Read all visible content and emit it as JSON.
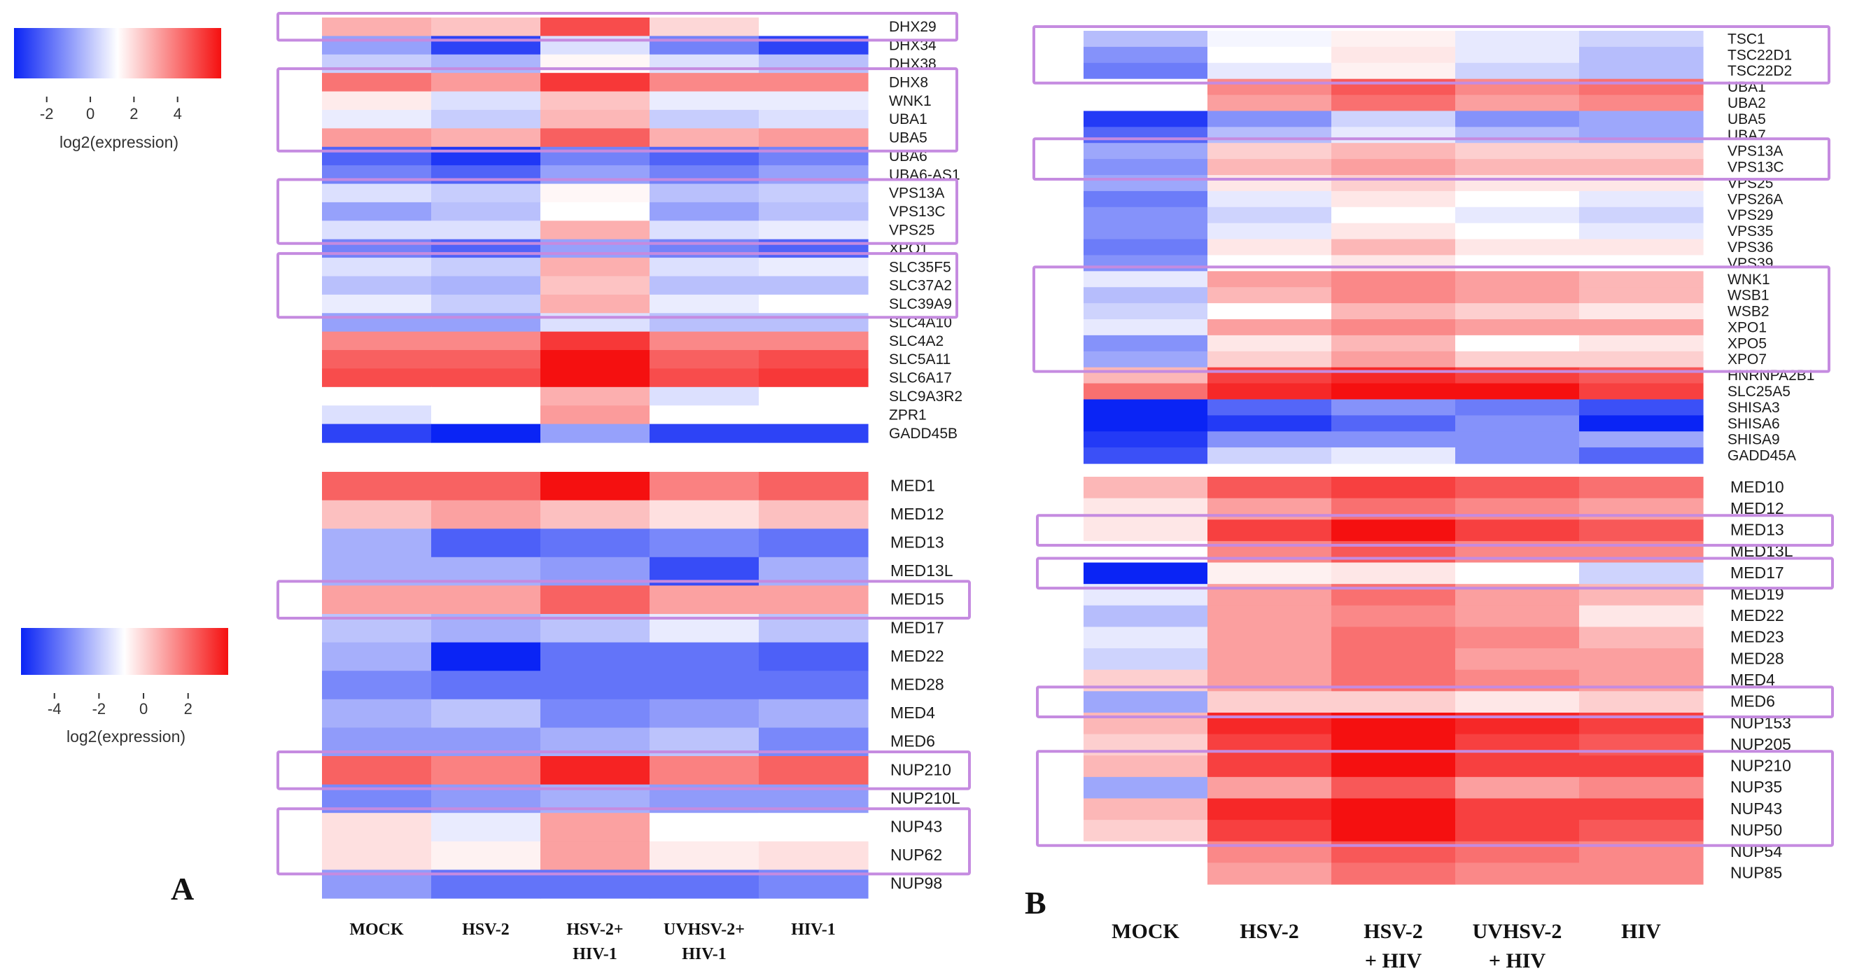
{
  "figure": {
    "panel_a_label": "A",
    "panel_b_label": "B",
    "legend_top": {
      "ticks": [
        "-2",
        "0",
        "2",
        "4"
      ],
      "title": "log2(expression)",
      "range": [
        -3.5,
        6
      ]
    },
    "legend_bottom": {
      "ticks": [
        "-4",
        "-2",
        "0",
        "2"
      ],
      "title": "log2(expression)",
      "range": [
        -5.5,
        3.8
      ]
    }
  },
  "colors": {
    "low": "#0a24f5",
    "mid": "#ffffff",
    "high": "#f51010",
    "highlight": "#c58be0"
  },
  "chart_data": [
    {
      "type": "heatmap",
      "title": "A (top)",
      "columns": [
        "MOCK",
        "HSV-2",
        "HSV-2+ HIV-1",
        "UVHSV-2+ HIV-1",
        "HIV-1"
      ],
      "column_labels": [
        [
          "MOCK"
        ],
        [
          "HSV-2"
        ],
        [
          "HSV-2+",
          "HIV-1"
        ],
        [
          "UVHSV-2+",
          "HIV-1"
        ],
        [
          "HIV-1"
        ]
      ],
      "range": [
        -3.5,
        6
      ],
      "rows": [
        "DHX29",
        "DHX34",
        "DHX38",
        "DHX8",
        "WNK1",
        "UBA1",
        "UBA5",
        "UBA6",
        "UBA6-AS1",
        "VPS13A",
        "VPS13C",
        "VPS25",
        "XPO1",
        "SLC35F5",
        "SLC37A2",
        "SLC39A9",
        "SLC4A10",
        "SLC4A2",
        "SLC5A11",
        "SLC6A17",
        "SLC9A3R2",
        "ZPR1",
        "GADD45B"
      ],
      "values": [
        [
          2.0,
          1.5,
          4.5,
          1.0,
          0.0
        ],
        [
          -1.5,
          -3.0,
          -0.5,
          -2.0,
          -3.0
        ],
        [
          -0.8,
          -1.2,
          0.2,
          -0.5,
          -1.0
        ],
        [
          3.5,
          2.5,
          5.0,
          3.0,
          3.0
        ],
        [
          0.5,
          -0.5,
          1.5,
          -0.3,
          -0.3
        ],
        [
          -0.3,
          -0.8,
          1.8,
          -0.8,
          -0.5
        ],
        [
          2.5,
          2.0,
          4.0,
          2.0,
          2.5
        ],
        [
          -2.5,
          -3.2,
          -2.0,
          -2.5,
          -2.0
        ],
        [
          -2.0,
          -2.5,
          -1.5,
          -2.0,
          -1.5
        ],
        [
          -0.5,
          -0.8,
          0.2,
          -1.0,
          -0.8
        ],
        [
          -1.5,
          -1.0,
          0.0,
          -1.5,
          -1.0
        ],
        [
          -0.5,
          -0.5,
          2.0,
          -0.5,
          -0.3
        ],
        [
          -2.0,
          -2.5,
          -1.5,
          -2.0,
          -2.5
        ],
        [
          -0.5,
          -0.8,
          2.0,
          -0.5,
          -0.3
        ],
        [
          -1.0,
          -1.2,
          1.5,
          -1.0,
          -1.0
        ],
        [
          -0.3,
          -0.8,
          2.0,
          -0.3,
          0.0
        ],
        [
          -1.5,
          -1.5,
          -0.5,
          -1.0,
          -1.0
        ],
        [
          3.0,
          3.0,
          5.0,
          3.0,
          3.0
        ],
        [
          4.0,
          4.0,
          6.0,
          4.0,
          4.5
        ],
        [
          4.5,
          4.5,
          6.5,
          4.5,
          5.0
        ],
        [
          0.0,
          0.0,
          2.0,
          -0.5,
          0.0
        ],
        [
          -0.5,
          0.0,
          2.5,
          0.0,
          0.0
        ],
        [
          -3.0,
          -3.5,
          -1.5,
          -3.0,
          -3.0
        ]
      ],
      "highlights": [
        [
          "DHX29",
          "DHX29"
        ],
        [
          "DHX8",
          "UBA5"
        ],
        [
          "VPS13A",
          "VPS25"
        ],
        [
          "SLC35F5",
          "SLC39A9"
        ]
      ]
    },
    {
      "type": "heatmap",
      "title": "A (bottom)",
      "columns": [
        "MOCK",
        "HSV-2",
        "HSV-2+ HIV-1",
        "UVHSV-2+ HIV-1",
        "HIV-1"
      ],
      "range": [
        -5.5,
        3.8
      ],
      "rows": [
        "MED1",
        "MED12",
        "MED13",
        "MED13L",
        "MED15",
        "MED17",
        "MED22",
        "MED28",
        "MED4",
        "MED6",
        "NUP210",
        "NUP210L",
        "NUP43",
        "NUP62",
        "NUP98"
      ],
      "values": [
        [
          2.5,
          2.5,
          4.0,
          2.0,
          2.5
        ],
        [
          1.0,
          1.5,
          1.0,
          0.5,
          1.0
        ],
        [
          -2.0,
          -4.0,
          -3.5,
          -3.0,
          -3.5
        ],
        [
          -2.0,
          -2.0,
          -2.5,
          -4.5,
          -2.0
        ],
        [
          1.5,
          1.5,
          2.5,
          1.5,
          1.5
        ],
        [
          -1.5,
          -2.0,
          -1.5,
          -0.5,
          -1.5
        ],
        [
          -2.0,
          -5.5,
          -3.5,
          -3.5,
          -4.0
        ],
        [
          -3.0,
          -3.5,
          -3.5,
          -3.5,
          -3.5
        ],
        [
          -2.0,
          -1.5,
          -3.0,
          -2.5,
          -2.0
        ],
        [
          -2.5,
          -2.5,
          -2.0,
          -1.5,
          -3.0
        ],
        [
          2.5,
          2.0,
          3.5,
          2.0,
          2.5
        ],
        [
          -3.0,
          -2.5,
          -2.0,
          -2.5,
          -2.5
        ],
        [
          0.5,
          -0.5,
          1.5,
          0.0,
          0.0
        ],
        [
          0.5,
          0.2,
          1.5,
          0.3,
          0.5
        ],
        [
          -2.5,
          -3.5,
          -3.5,
          -3.5,
          -3.0
        ]
      ],
      "highlights": [
        [
          "MED15",
          "MED15"
        ],
        [
          "NUP210",
          "NUP210"
        ],
        [
          "NUP43",
          "NUP62"
        ]
      ]
    },
    {
      "type": "heatmap",
      "title": "B (top)",
      "columns": [
        "MOCK",
        "HSV-2",
        "HSV-2 + HIV",
        "UVHSV-2 + HIV",
        "HIV"
      ],
      "column_labels": [
        [
          "MOCK"
        ],
        [
          "HSV-2"
        ],
        [
          "HSV-2",
          "+ HIV"
        ],
        [
          "UVHSV-2",
          "+ HIV"
        ],
        [
          "HIV"
        ]
      ],
      "rows": [
        "TSC1",
        "TSC22D1",
        "TSC22D2",
        "UBA1",
        "UBA2",
        "UBA5",
        "UBA7",
        "VPS13A",
        "VPS13C",
        "VPS25",
        "VPS26A",
        "VPS29",
        "VPS35",
        "VPS36",
        "VPS39",
        "WNK1",
        "WSB1",
        "WSB2",
        "XPO1",
        "XPO5",
        "XPO7",
        "HNRNPA2B1",
        "SLC25A5",
        "SHISA3",
        "SHISA6",
        "SHISA9",
        "GADD45A"
      ],
      "values": [
        [
          -1.5,
          -0.2,
          0.3,
          -0.5,
          -1.0
        ],
        [
          -2.5,
          0.0,
          0.5,
          -0.5,
          -1.5
        ],
        [
          -3.0,
          -0.5,
          0.3,
          -1.0,
          -1.5
        ],
        [
          0.0,
          2.5,
          3.5,
          2.5,
          3.0
        ],
        [
          0.0,
          2.0,
          3.0,
          2.0,
          2.5
        ],
        [
          -4.5,
          -2.5,
          -1.0,
          -2.5,
          -2.0
        ],
        [
          -3.5,
          -1.5,
          -0.5,
          -1.5,
          -2.0
        ],
        [
          -2.0,
          1.0,
          1.5,
          1.0,
          1.0
        ],
        [
          -2.5,
          1.5,
          2.0,
          1.5,
          1.5
        ],
        [
          -2.0,
          0.5,
          1.0,
          0.5,
          0.5
        ],
        [
          -3.0,
          -0.5,
          0.5,
          0.0,
          -0.5
        ],
        [
          -2.5,
          -1.0,
          0.0,
          -0.5,
          -1.0
        ],
        [
          -2.5,
          -0.5,
          0.5,
          0.0,
          -0.5
        ],
        [
          -3.0,
          0.5,
          1.5,
          0.5,
          0.5
        ],
        [
          -2.5,
          0.0,
          0.5,
          0.0,
          0.0
        ],
        [
          -0.5,
          2.0,
          2.5,
          2.0,
          1.5
        ],
        [
          -1.5,
          1.5,
          2.5,
          2.0,
          1.5
        ],
        [
          -1.0,
          0.0,
          1.5,
          1.0,
          0.5
        ],
        [
          -0.5,
          2.0,
          2.5,
          2.0,
          2.0
        ],
        [
          -2.5,
          0.5,
          1.5,
          0.0,
          0.5
        ],
        [
          -2.0,
          1.0,
          2.0,
          1.0,
          1.0
        ],
        [
          1.5,
          4.0,
          4.5,
          4.0,
          3.5
        ],
        [
          3.0,
          4.5,
          5.0,
          5.0,
          4.0
        ],
        [
          -5.0,
          -3.5,
          -2.5,
          -3.0,
          -4.0
        ],
        [
          -5.0,
          -4.5,
          -3.5,
          -2.5,
          -5.0
        ],
        [
          -4.5,
          -2.5,
          -2.5,
          -2.5,
          -2.0
        ],
        [
          -4.0,
          -1.0,
          -0.5,
          -2.5,
          -3.5
        ]
      ],
      "highlights": [
        [
          "TSC1",
          "TSC22D2"
        ],
        [
          "VPS13A",
          "VPS13C"
        ],
        [
          "WNK1",
          "XPO7"
        ]
      ]
    },
    {
      "type": "heatmap",
      "title": "B (bottom)",
      "columns": [
        "MOCK",
        "HSV-2",
        "HSV-2 + HIV",
        "UVHSV-2 + HIV",
        "HIV"
      ],
      "rows": [
        "MED10",
        "MED12",
        "MED13",
        "MED13L",
        "MED17",
        "MED19",
        "MED22",
        "MED23",
        "MED28",
        "MED4",
        "MED6",
        "NUP153",
        "NUP205",
        "NUP210",
        "NUP35",
        "NUP43",
        "NUP50",
        "NUP54",
        "NUP85"
      ],
      "values": [
        [
          1.5,
          3.5,
          4.0,
          3.5,
          3.0
        ],
        [
          0.5,
          2.0,
          3.0,
          2.5,
          2.0
        ],
        [
          0.5,
          4.0,
          5.0,
          4.0,
          3.5
        ],
        [
          0.0,
          2.5,
          3.5,
          2.5,
          2.5
        ],
        [
          -5.0,
          0.3,
          0.5,
          0.0,
          -1.0
        ],
        [
          -0.5,
          2.0,
          3.0,
          2.0,
          1.5
        ],
        [
          -1.5,
          2.0,
          2.5,
          2.0,
          0.5
        ],
        [
          -0.5,
          2.0,
          3.0,
          2.5,
          1.5
        ],
        [
          -1.0,
          2.0,
          3.0,
          2.0,
          2.0
        ],
        [
          1.0,
          2.0,
          3.0,
          2.5,
          2.0
        ],
        [
          -2.0,
          1.0,
          1.0,
          0.5,
          1.0
        ],
        [
          1.5,
          4.5,
          5.0,
          4.5,
          4.0
        ],
        [
          1.0,
          4.0,
          5.0,
          4.0,
          3.5
        ],
        [
          1.5,
          4.0,
          5.0,
          4.0,
          4.0
        ],
        [
          -2.0,
          2.0,
          3.5,
          2.0,
          2.5
        ],
        [
          1.5,
          4.5,
          5.0,
          4.0,
          4.0
        ],
        [
          1.0,
          4.0,
          5.0,
          4.0,
          3.5
        ],
        [
          0.0,
          2.5,
          3.5,
          3.0,
          2.5
        ],
        [
          0.0,
          2.0,
          3.0,
          2.5,
          2.5
        ]
      ],
      "highlights": [
        [
          "MED13",
          "MED13"
        ],
        [
          "MED17",
          "MED17"
        ],
        [
          "MED6",
          "MED6"
        ],
        [
          "NUP210",
          "NUP50"
        ]
      ]
    }
  ]
}
